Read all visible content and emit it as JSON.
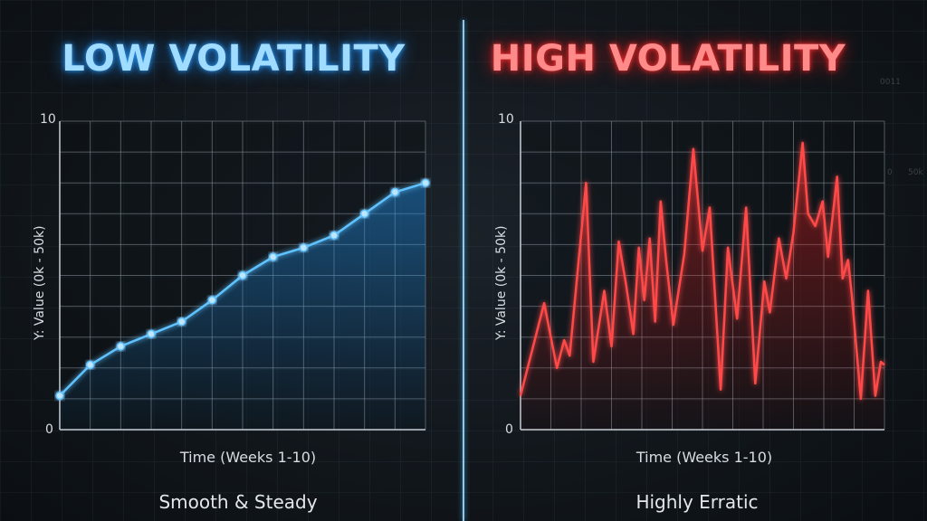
{
  "panels": {
    "left": {
      "title": "LOW VOLATILITY",
      "y_tick_top": "10",
      "y_tick_bottom": "0",
      "ylabel": "Y: Value (0k - 50k)",
      "xlabel": "Time (Weeks 1-10)",
      "caption": "Smooth & Steady"
    },
    "right": {
      "title": "HIGH VOLATILITY",
      "y_tick_top": "10",
      "y_tick_bottom": "0",
      "ylabel": "Y: Value (0k - 50k)",
      "xlabel": "Time (Weeks 1-10)",
      "caption": "Highly Erratic"
    }
  },
  "background_marks": [
    "0011",
    "0",
    "50k"
  ],
  "colors": {
    "low_line": "#5ec2ff",
    "low_glow": "#1f8fe8",
    "high_line": "#ff4a4a",
    "high_glow": "#e01c1c",
    "grid": "#8a949c",
    "divider": "#8ec9ea"
  },
  "chart_data": [
    {
      "type": "line",
      "title": "LOW VOLATILITY",
      "xlabel": "Time (Weeks 1-10)",
      "ylabel": "Y: Value (0k - 50k)",
      "ylim": [
        0,
        10
      ],
      "grid": true,
      "markers": true,
      "series": [
        {
          "x": [
            0,
            1,
            2,
            3,
            4,
            5,
            6,
            7,
            8,
            9,
            10,
            11,
            12
          ],
          "y": [
            1.1,
            2.1,
            2.7,
            3.1,
            3.5,
            4.2,
            5.0,
            5.6,
            5.9,
            6.3,
            7.0,
            7.7,
            8.0
          ]
        }
      ]
    },
    {
      "type": "line",
      "title": "HIGH VOLATILITY",
      "xlabel": "Time (Weeks 1-10)",
      "ylabel": "Y: Value (0k - 50k)",
      "ylim": [
        0,
        10
      ],
      "grid": true,
      "markers": false,
      "series": [
        {
          "x": [
            0,
            0.65,
            1.0,
            1.2,
            1.35,
            1.55,
            1.8,
            2.0,
            2.3,
            2.5,
            2.7,
            2.9,
            3.1,
            3.25,
            3.4,
            3.55,
            3.7,
            3.85,
            4.0,
            4.2,
            4.5,
            4.75,
            5.0,
            5.2,
            5.5,
            5.7,
            5.95,
            6.2,
            6.45,
            6.7,
            6.85,
            7.1,
            7.3,
            7.5,
            7.75,
            7.9,
            8.1,
            8.3,
            8.45,
            8.7,
            8.85,
            9.0,
            9.1,
            9.35,
            9.55,
            9.75,
            9.9,
            10.0
          ],
          "y": [
            1.1,
            4.1,
            2.0,
            2.9,
            2.4,
            4.9,
            8.0,
            2.2,
            4.5,
            2.7,
            6.1,
            4.7,
            3.1,
            5.9,
            4.2,
            6.2,
            3.5,
            7.4,
            5.5,
            3.4,
            5.7,
            9.1,
            5.8,
            7.2,
            1.3,
            5.9,
            3.6,
            7.2,
            1.5,
            4.8,
            3.8,
            6.2,
            4.9,
            6.4,
            9.3,
            7.0,
            6.6,
            7.4,
            5.6,
            8.2,
            4.9,
            5.5,
            4.4,
            1.0,
            4.5,
            1.1,
            2.2,
            2.1
          ]
        }
      ]
    }
  ]
}
